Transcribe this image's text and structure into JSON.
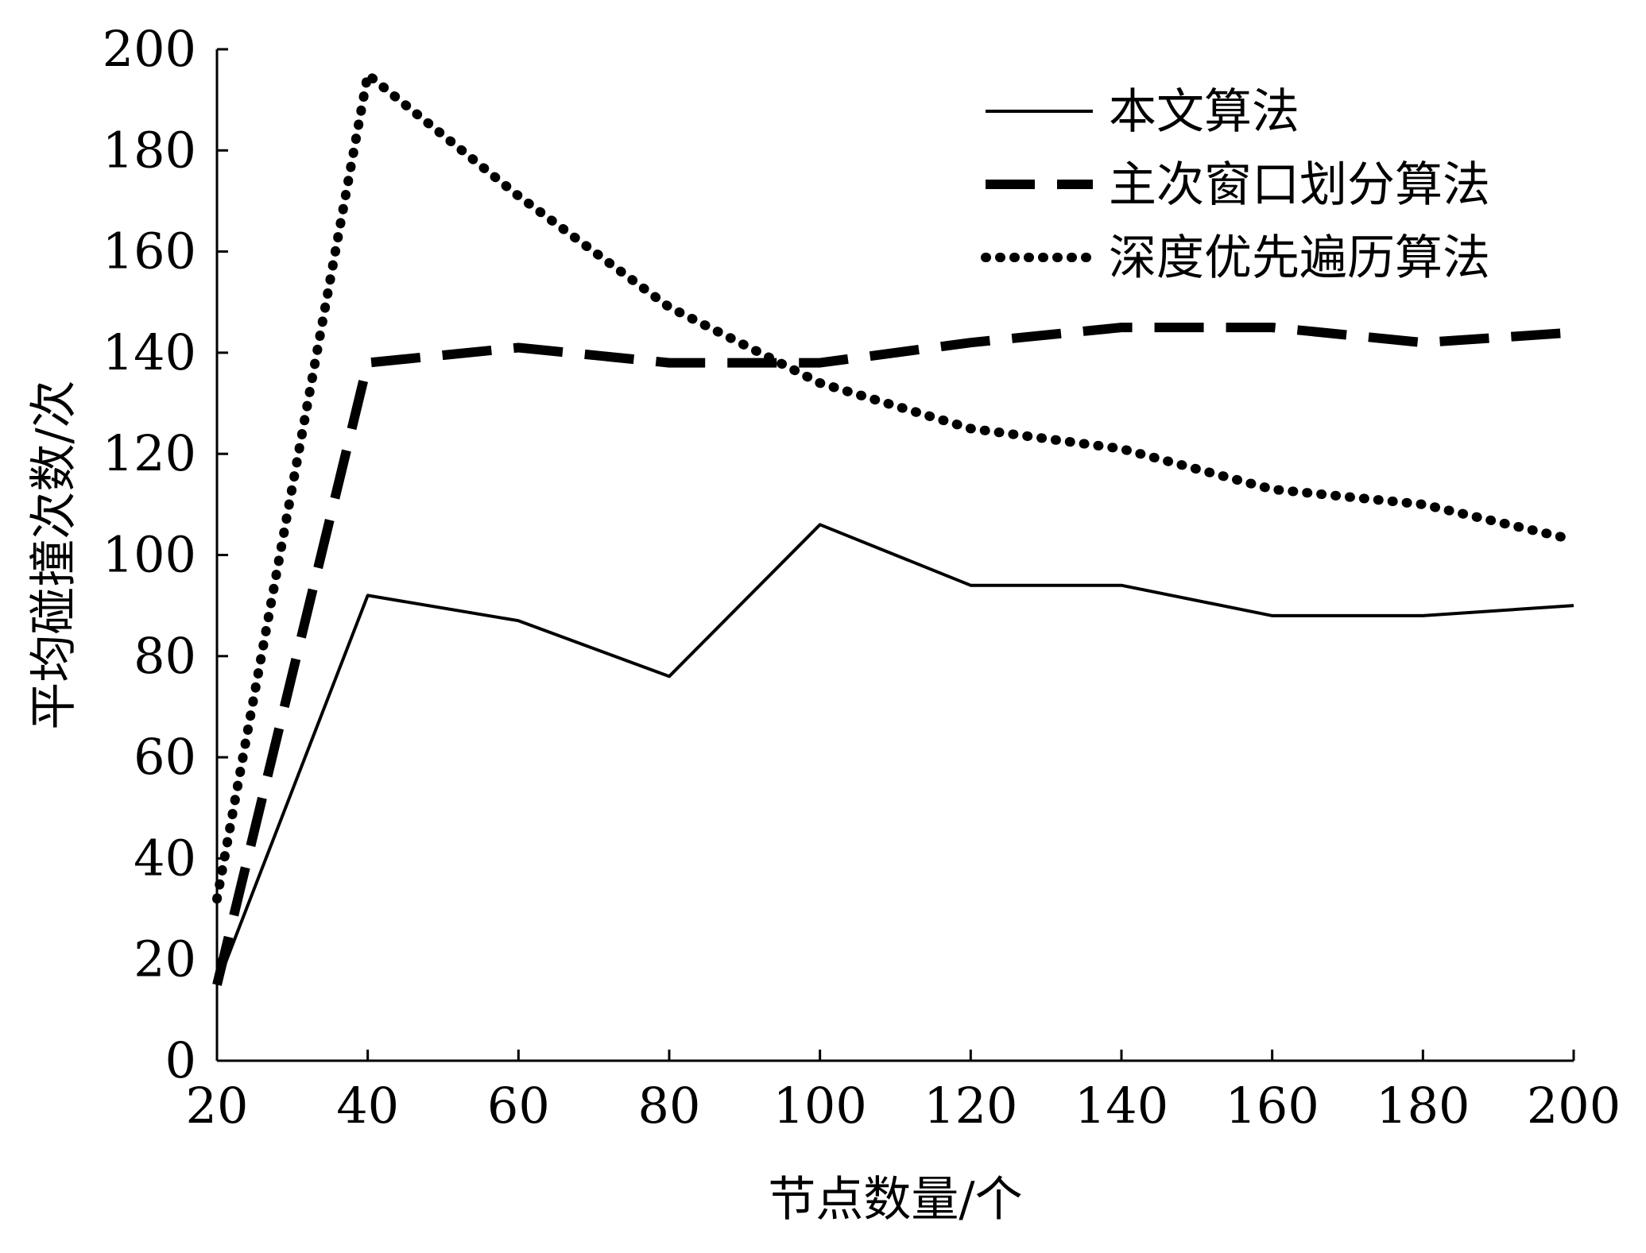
{
  "chart_data": {
    "type": "line",
    "xlabel": "节点数量/个",
    "ylabel": "平均碰撞次数/次",
    "xlim": [
      20,
      200
    ],
    "ylim": [
      0,
      200
    ],
    "xticks": [
      "20",
      "40",
      "60",
      "80",
      "100",
      "120",
      "140",
      "160",
      "180",
      "200"
    ],
    "yticks": [
      "0",
      "20",
      "40",
      "60",
      "80",
      "100",
      "120",
      "140",
      "160",
      "180",
      "200"
    ],
    "x": [
      20,
      40,
      60,
      80,
      100,
      120,
      140,
      160,
      180,
      200
    ],
    "grid": false,
    "legend_position": "top-right",
    "series": [
      {
        "name": "本文算法",
        "style": "solid",
        "color": "#000000",
        "values": [
          15,
          92,
          87,
          76,
          106,
          94,
          94,
          88,
          88,
          90
        ]
      },
      {
        "name": "主次窗口划分算法",
        "style": "dashed",
        "color": "#000000",
        "values": [
          15,
          138,
          141,
          138,
          138,
          142,
          145,
          145,
          142,
          144
        ]
      },
      {
        "name": "深度优先遍历算法",
        "style": "dotted",
        "color": "#000000",
        "values": [
          32,
          195,
          171,
          149,
          134,
          125,
          121,
          113,
          110,
          103
        ]
      }
    ]
  }
}
